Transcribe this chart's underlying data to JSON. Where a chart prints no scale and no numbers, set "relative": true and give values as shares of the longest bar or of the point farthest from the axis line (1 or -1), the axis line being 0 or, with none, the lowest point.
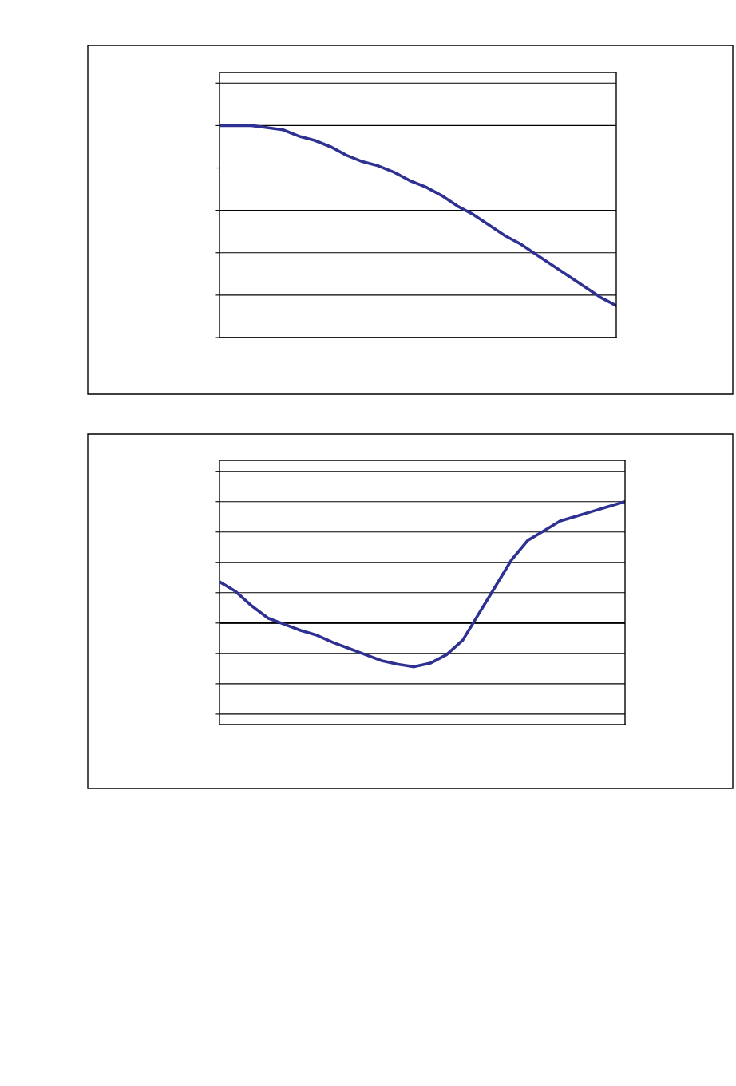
{
  "chart_data": [
    {
      "type": "line",
      "relative": true,
      "grid": "y",
      "categories": [
        null,
        null,
        null,
        null,
        null,
        null,
        null,
        null,
        null,
        null,
        null,
        null,
        null,
        null,
        null,
        null,
        null,
        null,
        null,
        null,
        null,
        null,
        null,
        null,
        null,
        null
      ],
      "series": [
        {
          "color": "#2e3192",
          "values": [
            1,
            1,
            1,
            0.99,
            0.98,
            0.95,
            0.93,
            0.9,
            0.86,
            0.83,
            0.81,
            0.78,
            0.74,
            0.71,
            0.67,
            0.62,
            0.58,
            0.53,
            0.48,
            0.44,
            0.39,
            0.34,
            0.29,
            0.24,
            0.19,
            0.15
          ]
        }
      ]
    },
    {
      "type": "line",
      "relative": true,
      "grid": "y",
      "categories": [
        null,
        null,
        null,
        null,
        null,
        null,
        null,
        null,
        null,
        null,
        null,
        null,
        null,
        null,
        null,
        null,
        null,
        null,
        null,
        null,
        null,
        null,
        null,
        null,
        null,
        null
      ],
      "series": [
        {
          "color": "#2e3192",
          "values": [
            0.34,
            0.26,
            0.14,
            0.04,
            -0.01,
            -0.06,
            -0.1,
            -0.16,
            -0.21,
            -0.26,
            -0.31,
            -0.34,
            -0.36,
            -0.33,
            -0.26,
            -0.14,
            0.08,
            0.3,
            0.52,
            0.68,
            0.76,
            0.84,
            0.88,
            0.92,
            0.96,
            1
          ]
        }
      ]
    }
  ]
}
